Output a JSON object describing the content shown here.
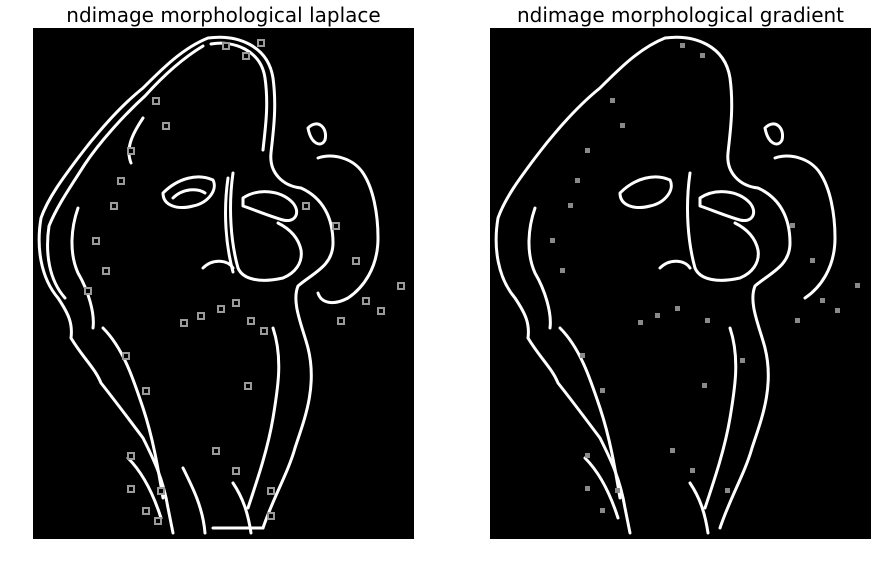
{
  "panels": [
    {
      "title": "ndimage morphological laplace"
    },
    {
      "title": "ndimage morphological gradient"
    }
  ],
  "colors": {
    "background": "#ffffff",
    "image_background": "#000000",
    "edge": "#ffffff",
    "speckle": "#9a9a9a"
  }
}
